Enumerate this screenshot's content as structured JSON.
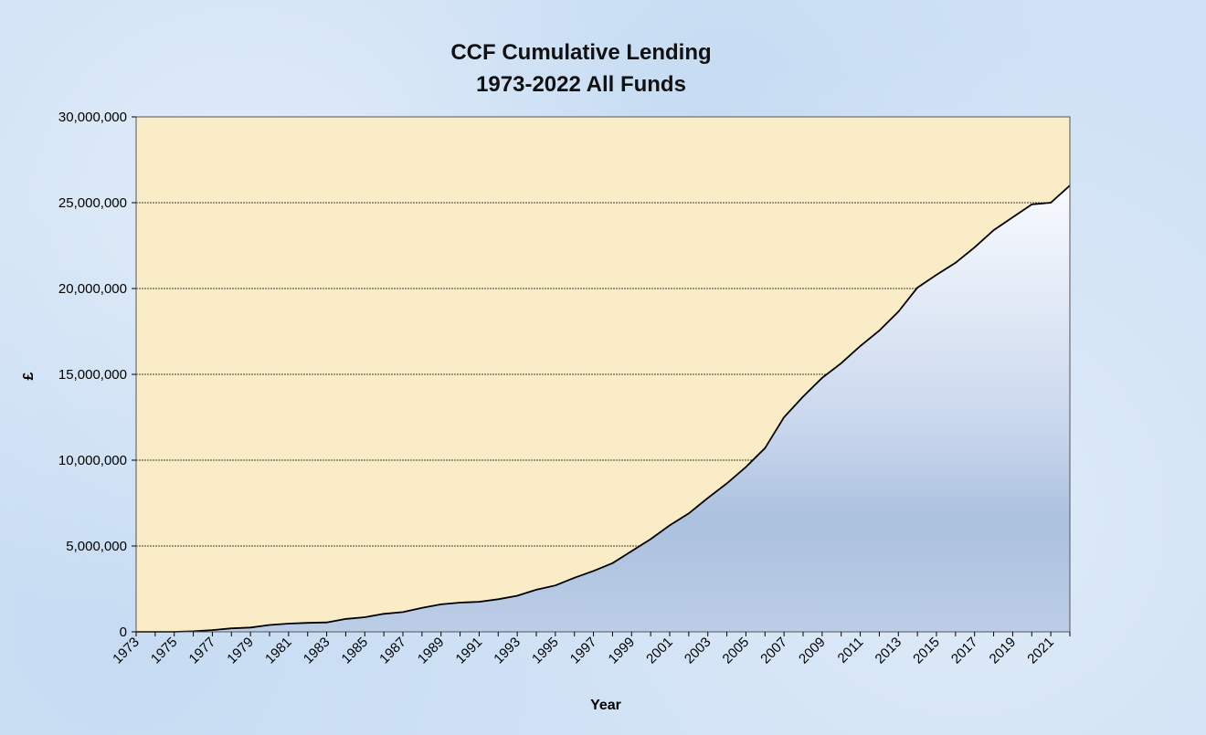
{
  "chart_data": {
    "type": "area",
    "title_lines": [
      "CCF Cumulative Lending",
      "1973-2022 All Funds"
    ],
    "xlabel": "Year",
    "ylabel": "£",
    "ylim": [
      0,
      30000000
    ],
    "yticks": [
      0,
      5000000,
      10000000,
      15000000,
      20000000,
      25000000,
      30000000
    ],
    "ytick_labels": [
      "0",
      "5,000,000",
      "10,000,000",
      "15,000,000",
      "20,000,000",
      "25,000,000",
      "30,000,000"
    ],
    "xlim": [
      1973,
      2022
    ],
    "xtick_labels": [
      "1973",
      "1975",
      "1977",
      "1979",
      "1981",
      "1983",
      "1985",
      "1987",
      "1989",
      "1991",
      "1993",
      "1995",
      "1997",
      "1999",
      "2001",
      "2003",
      "2005",
      "2007",
      "2009",
      "2011",
      "2013",
      "2015",
      "2017",
      "2019",
      "2021"
    ],
    "grid": "horizontal",
    "legend": "none",
    "colors": {
      "plot_bg": "#fbecc8",
      "area_top": "#f8fbff",
      "area_mid": "#c0d0e8",
      "area_bottom": "#aac0df",
      "line": "#000000",
      "grid": "#000000"
    },
    "series": [
      {
        "x": [
          1973,
          1974,
          1975,
          1976,
          1977,
          1978,
          1979,
          1980,
          1981,
          1982,
          1983,
          1984,
          1985,
          1986,
          1987,
          1988,
          1989,
          1990,
          1991,
          1992,
          1993,
          1994,
          1995,
          1996,
          1997,
          1998,
          1999,
          2000,
          2001,
          2002,
          2003,
          2004,
          2005,
          2006,
          2007,
          2008,
          2009,
          2010,
          2011,
          2012,
          2013,
          2014,
          2015,
          2016,
          2017,
          2018,
          2019,
          2020,
          2021,
          2022
        ],
        "values": [
          0,
          0,
          0,
          30000,
          100000,
          200000,
          250000,
          400000,
          480000,
          520000,
          550000,
          750000,
          850000,
          1050000,
          1150000,
          1400000,
          1600000,
          1700000,
          1750000,
          1900000,
          2100000,
          2450000,
          2700000,
          3150000,
          3550000,
          4000000,
          4700000,
          5400000,
          6200000,
          6900000,
          7800000,
          8650000,
          9600000,
          10700000,
          12500000,
          13700000,
          14800000,
          15650000,
          16650000,
          17550000,
          18650000,
          20050000,
          20800000,
          21500000,
          22400000,
          23400000,
          24150000,
          24900000,
          25000000,
          26000000
        ]
      }
    ]
  }
}
